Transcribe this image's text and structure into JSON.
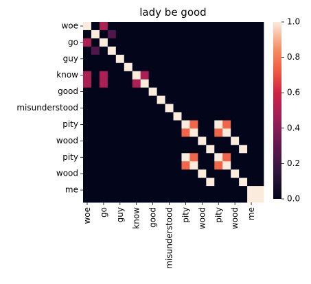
{
  "chart_data": {
    "type": "heatmap",
    "title": "lady be good",
    "ytick_labels": [
      "woe",
      "go",
      "guy",
      "know",
      "good",
      "misunderstood",
      "pity",
      "wood",
      "pity",
      "wood",
      "me"
    ],
    "xtick_labels": [
      "woe",
      "go",
      "guy",
      "know",
      "good",
      "misunderstood",
      "pity",
      "wood",
      "pity",
      "wood",
      "me"
    ],
    "tokens": [
      "woe",
      "woe",
      "go",
      "go",
      "guy",
      "guy",
      "know",
      "know",
      "good",
      "good",
      "misunderstood",
      "misunderstood",
      "pity",
      "pity",
      "wood",
      "wood",
      "pity",
      "pity",
      "wood",
      "wood",
      "me",
      "me"
    ],
    "colorbar": {
      "min": 0.0,
      "max": 1.0,
      "ticks": [
        "0.0",
        "0.2",
        "0.4",
        "0.6",
        "0.8",
        "1.0"
      ]
    },
    "values": [
      [
        1,
        0,
        0.5,
        0,
        0,
        0,
        0,
        0,
        0,
        0,
        0,
        0,
        0,
        0,
        0,
        0,
        0,
        0,
        0,
        0,
        0,
        0
      ],
      [
        0,
        1,
        0,
        0.25,
        0,
        0,
        0,
        0,
        0,
        0,
        0,
        0,
        0,
        0,
        0,
        0,
        0,
        0,
        0,
        0,
        0,
        0
      ],
      [
        0.5,
        0,
        1,
        0,
        0,
        0,
        0,
        0,
        0,
        0,
        0,
        0,
        0,
        0,
        0,
        0,
        0,
        0,
        0,
        0,
        0,
        0
      ],
      [
        0,
        0.25,
        0,
        1,
        0,
        0,
        0,
        0,
        0,
        0,
        0,
        0,
        0,
        0,
        0,
        0,
        0,
        0,
        0,
        0,
        0,
        0
      ],
      [
        0,
        0,
        0,
        0,
        1,
        0,
        0,
        0,
        0,
        0,
        0,
        0,
        0,
        0,
        0,
        0,
        0,
        0,
        0,
        0,
        0,
        0
      ],
      [
        0,
        0,
        0,
        0,
        0,
        1,
        0,
        0,
        0,
        0,
        0,
        0,
        0,
        0,
        0,
        0,
        0,
        0,
        0,
        0,
        0,
        0
      ],
      [
        0.5,
        0,
        0.5,
        0,
        0,
        0,
        1,
        0.5,
        0,
        0,
        0,
        0,
        0,
        0,
        0,
        0,
        0,
        0,
        0,
        0,
        0,
        0
      ],
      [
        0.5,
        0,
        0.5,
        0,
        0,
        0,
        0.5,
        1,
        0,
        0,
        0,
        0,
        0,
        0,
        0,
        0,
        0,
        0,
        0,
        0,
        0,
        0
      ],
      [
        0,
        0,
        0,
        0,
        0,
        0,
        0,
        0,
        1,
        0,
        0,
        0,
        0,
        0,
        0,
        0,
        0,
        0,
        0,
        0,
        0,
        0
      ],
      [
        0,
        0,
        0,
        0,
        0,
        0,
        0,
        0,
        0,
        1,
        0,
        0,
        0,
        0,
        0,
        0,
        0,
        0,
        0,
        0,
        0,
        0
      ],
      [
        0,
        0,
        0,
        0,
        0,
        0,
        0,
        0,
        0,
        0,
        1,
        0,
        0,
        0,
        0,
        0,
        0,
        0,
        0,
        0,
        0,
        0
      ],
      [
        0,
        0,
        0,
        0,
        0,
        0,
        0,
        0,
        0,
        0,
        0,
        1,
        0,
        0,
        0,
        0,
        0,
        0,
        0,
        0,
        0,
        0
      ],
      [
        0,
        0,
        0,
        0,
        0,
        0,
        0,
        0,
        0,
        0,
        0,
        0,
        1,
        0.75,
        0,
        0,
        1,
        0.75,
        0,
        0,
        0,
        0
      ],
      [
        0,
        0,
        0,
        0,
        0,
        0,
        0,
        0,
        0,
        0,
        0,
        0,
        0.75,
        1,
        0,
        0,
        0.75,
        1,
        0,
        0,
        0,
        0
      ],
      [
        0,
        0,
        0,
        0,
        0,
        0,
        0,
        0,
        0,
        0,
        0,
        0,
        0,
        0,
        1,
        0,
        0,
        0,
        1,
        0,
        0,
        0
      ],
      [
        0,
        0,
        0,
        0,
        0,
        0,
        0,
        0,
        0,
        0,
        0,
        0,
        0,
        0,
        0,
        1,
        0,
        0,
        0,
        1,
        0,
        0
      ],
      [
        0,
        0,
        0,
        0,
        0,
        0,
        0,
        0,
        0,
        0,
        0,
        0,
        1,
        0.75,
        0,
        0,
        1,
        0.75,
        0,
        0,
        0,
        0
      ],
      [
        0,
        0,
        0,
        0,
        0,
        0,
        0,
        0,
        0,
        0,
        0,
        0,
        0.75,
        1,
        0,
        0,
        0.75,
        1,
        0,
        0,
        0,
        0
      ],
      [
        0,
        0,
        0,
        0,
        0,
        0,
        0,
        0,
        0,
        0,
        0,
        0,
        0,
        0,
        1,
        0,
        0,
        0,
        1,
        0,
        0,
        0
      ],
      [
        0,
        0,
        0,
        0,
        0,
        0,
        0,
        0,
        0,
        0,
        0,
        0,
        0,
        0,
        0,
        1,
        0,
        0,
        0,
        1,
        0,
        0
      ],
      [
        0,
        0,
        0,
        0,
        0,
        0,
        0,
        0,
        0,
        0,
        0,
        0,
        0,
        0,
        0,
        0,
        0,
        0,
        0,
        0,
        1,
        1
      ],
      [
        0,
        0,
        0,
        0,
        0,
        0,
        0,
        0,
        0,
        0,
        0,
        0,
        0,
        0,
        0,
        0,
        0,
        0,
        0,
        0,
        1,
        1
      ]
    ]
  }
}
